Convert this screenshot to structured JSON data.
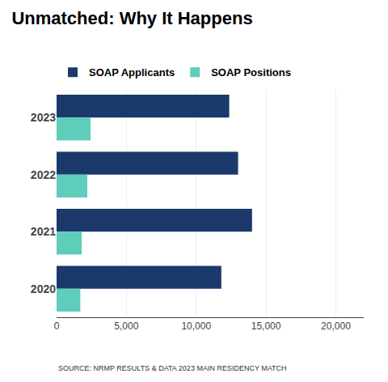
{
  "chart_data": {
    "type": "bar",
    "orientation": "horizontal",
    "title": "Unmatched: Why It Happens",
    "categories": [
      "2023",
      "2022",
      "2021",
      "2020"
    ],
    "series": [
      {
        "name": "SOAP Applicants",
        "color": "#1B3A6B",
        "values": [
          12365,
          13000,
          14000,
          11800
        ]
      },
      {
        "name": "SOAP Positions",
        "color": "#5ECDB9",
        "values": [
          2431,
          2200,
          1800,
          1700
        ]
      }
    ],
    "xlim": [
      0,
      22000
    ],
    "xticks": [
      0,
      {
        "value": 5000,
        "label": "5,000"
      },
      {
        "value": 10000,
        "label": "10,000"
      },
      {
        "value": 15000,
        "label": "15,000"
      },
      {
        "value": 20000,
        "label": "20,000"
      }
    ],
    "grid": true,
    "legend": "upper left",
    "annotations": [
      "SOURCE: NRMP RESULTS & DATA 2023 MAIN RESIDENCY MATCH"
    ]
  }
}
